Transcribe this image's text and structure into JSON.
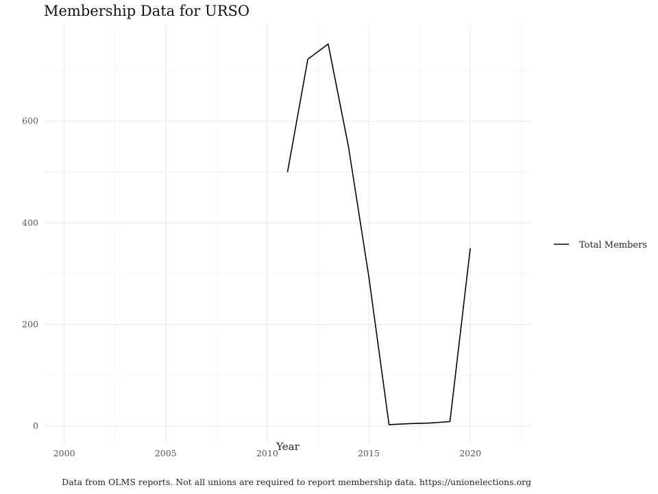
{
  "chart_data": {
    "type": "line",
    "title": "Membership Data for URSO",
    "xlabel": "Year",
    "ylabel": "",
    "caption": "Data from OLMS reports. Not all unions are required to report membership data. https://unionelections.org",
    "xlim": [
      1999,
      2023
    ],
    "ylim": [
      -35,
      790
    ],
    "x_ticks": [
      2000,
      2005,
      2010,
      2015,
      2020
    ],
    "y_ticks": [
      0,
      200,
      400,
      600
    ],
    "grid": true,
    "legend_position": "right",
    "series": [
      {
        "name": "Total Members",
        "color": "#000000",
        "x": [
          2011,
          2012,
          2013,
          2014,
          2015,
          2016,
          2017,
          2018,
          2019,
          2020
        ],
        "y": [
          500,
          722,
          752,
          550,
          295,
          3,
          5,
          6,
          9,
          350
        ]
      }
    ]
  }
}
